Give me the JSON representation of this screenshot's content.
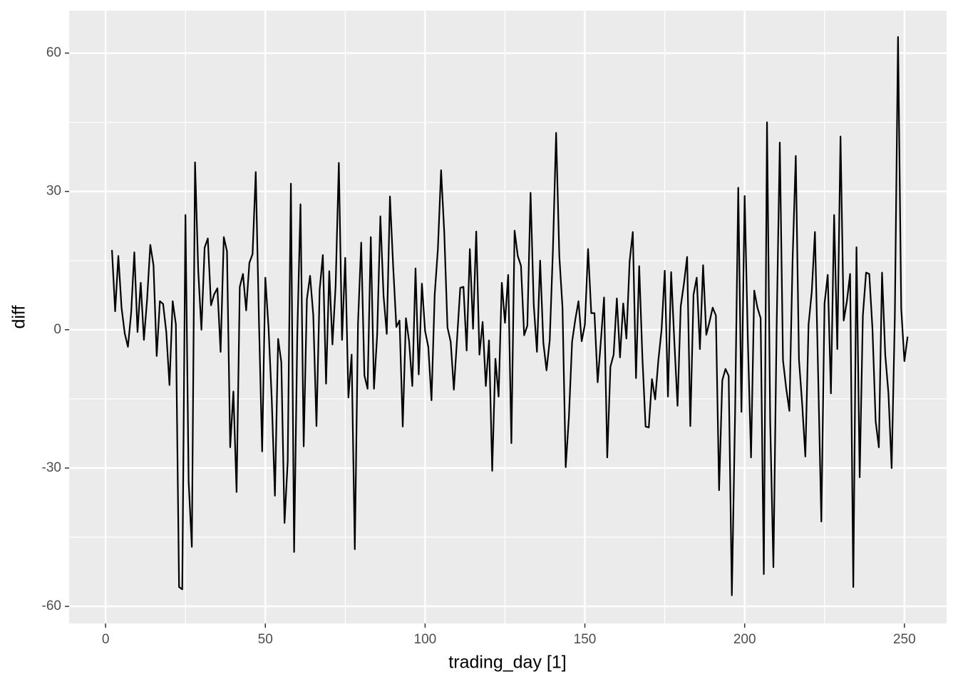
{
  "chart_data": {
    "type": "line",
    "x_label": "trading_day [1]",
    "y_label": "diff",
    "x": [
      2,
      3,
      4,
      5,
      6,
      7,
      8,
      9,
      10,
      11,
      12,
      13,
      14,
      15,
      16,
      17,
      18,
      19,
      20,
      21,
      22,
      23,
      24,
      25,
      26,
      27,
      28,
      29,
      30,
      31,
      32,
      33,
      34,
      35,
      36,
      37,
      38,
      39,
      40,
      41,
      42,
      43,
      44,
      45,
      46,
      47,
      48,
      49,
      50,
      51,
      52,
      53,
      54,
      55,
      56,
      57,
      58,
      59,
      60,
      61,
      62,
      63,
      64,
      65,
      66,
      67,
      68,
      69,
      70,
      71,
      72,
      73,
      74,
      75,
      76,
      77,
      78,
      79,
      80,
      81,
      82,
      83,
      84,
      85,
      86,
      87,
      88,
      89,
      90,
      91,
      92,
      93,
      94,
      95,
      96,
      97,
      98,
      99,
      100,
      101,
      102,
      103,
      104,
      105,
      106,
      107,
      108,
      109,
      110,
      111,
      112,
      113,
      114,
      115,
      116,
      117,
      118,
      119,
      120,
      121,
      122,
      123,
      124,
      125,
      126,
      127,
      128,
      129,
      130,
      131,
      132,
      133,
      134,
      135,
      136,
      137,
      138,
      139,
      140,
      141,
      142,
      143,
      144,
      145,
      146,
      147,
      148,
      149,
      150,
      151,
      152,
      153,
      154,
      155,
      156,
      157,
      158,
      159,
      160,
      161,
      162,
      163,
      164,
      165,
      166,
      167,
      168,
      169,
      170,
      171,
      172,
      173,
      174,
      175,
      176,
      177,
      178,
      179,
      180,
      181,
      182,
      183,
      184,
      185,
      186,
      187,
      188,
      189,
      190,
      191,
      192,
      193,
      194,
      195,
      196,
      197,
      198,
      199,
      200,
      201,
      202,
      203,
      204,
      205,
      206,
      207,
      208,
      209,
      210,
      211,
      212,
      213,
      214,
      215,
      216,
      217,
      218,
      219,
      220,
      221,
      222,
      223,
      224,
      225,
      226,
      227,
      228,
      229,
      230,
      231,
      232,
      233,
      234,
      235,
      236,
      237,
      238,
      239,
      240,
      241,
      242,
      243,
      244,
      245,
      246,
      247,
      248,
      249,
      250,
      251
    ],
    "series": [
      {
        "name": "diff",
        "color": "#000000",
        "values": [
          17.3,
          4,
          16,
          4.8,
          -0.8,
          -3.7,
          3.6,
          16.8,
          -0.5,
          10.2,
          -2.2,
          6.6,
          18.4,
          14,
          -5.7,
          6.2,
          5.6,
          -0.5,
          -12,
          6.2,
          1.2,
          -55.8,
          -56.3,
          24.9,
          -32.9,
          -47.1,
          36.3,
          12.8,
          0,
          17.8,
          19.8,
          5.3,
          7.7,
          9,
          -4.8,
          20.1,
          17,
          -25.5,
          -13.4,
          -35.2,
          9.3,
          12.1,
          4.2,
          14.5,
          16.4,
          34.2,
          2,
          -26.4,
          11.3,
          0.5,
          -15,
          -36,
          -2,
          -7,
          -41.9,
          -28.6,
          31.7,
          -48.2,
          -1.1,
          27.2,
          -25.3,
          6.6,
          11.7,
          3.2,
          -20.9,
          8.7,
          16.2,
          -11.7,
          12.7,
          -3.2,
          9.6,
          36.2,
          -2.2,
          15.6,
          -14.7,
          -5.4,
          -47.6,
          1.4,
          18.9,
          -9.9,
          -12.8,
          20.1,
          -12.8,
          -1.1,
          24.6,
          7.3,
          -0.9,
          28.9,
          13.8,
          0.6,
          2,
          -21,
          2.5,
          -2.6,
          -12.2,
          13.3,
          -9.7,
          10,
          -0.3,
          -3.7,
          -15.3,
          7.6,
          17.5,
          34.6,
          21,
          0.5,
          -2.6,
          -13,
          -2,
          9.1,
          9.3,
          -4.5,
          17.5,
          0.2,
          21.3,
          -5.4,
          1.7,
          -12.2,
          -2.3,
          -30.6,
          -6.3,
          -14.5,
          10.2,
          1.5,
          11.9,
          -24.6,
          21.5,
          16,
          13.9,
          -1.2,
          0.9,
          29.7,
          5.4,
          -4.8,
          15,
          -2.8,
          -8.8,
          -2.3,
          17.3,
          42.7,
          16,
          4.8,
          -29.8,
          -19,
          -2.6,
          2.2,
          6.2,
          -2.5,
          1.1,
          17.5,
          3.6,
          3.6,
          -11.4,
          -2.5,
          7,
          -27.7,
          -8,
          -5.4,
          6.8,
          -6,
          5.7,
          -1.9,
          14.8,
          21.2,
          -10.5,
          13.8,
          -6,
          -21,
          -21.2,
          -10.7,
          -15.1,
          -6.6,
          0,
          12.8,
          -14.5,
          12.5,
          -2.6,
          -16.5,
          5.1,
          10,
          15.8,
          -20.9,
          7.6,
          11.3,
          -4.2,
          14,
          -1.1,
          1.7,
          4.8,
          3.1,
          -34.8,
          -11,
          -8.5,
          -10,
          -57.6,
          -18.5,
          30.8,
          -17.8,
          29,
          -2.2,
          -27.7,
          8.5,
          4.8,
          2.5,
          -53,
          45,
          -20.1,
          -51.5,
          0,
          40.6,
          -6.6,
          -12.7,
          -17.6,
          15.1,
          37.7,
          -6.5,
          -16.1,
          -27.5,
          1.1,
          8.2,
          21.2,
          -9.7,
          -41.6,
          5.7,
          11.9,
          -13.8,
          24.9,
          -4.2,
          41.9,
          2,
          6.2,
          12.1,
          -55.8,
          17.9,
          -32,
          3.1,
          12.4,
          12.1,
          0.2,
          -19.9,
          -25.5,
          12.4,
          -5.4,
          -13.8,
          -30,
          2.8,
          63.5,
          4.6,
          -6.8,
          -1.5
        ]
      }
    ],
    "xlim": [
      -11.4,
      263.2
    ],
    "xticks": [
      0,
      50,
      100,
      150,
      200,
      250
    ],
    "xminorticks": [
      25,
      75,
      125,
      175,
      225
    ],
    "ylim": [
      -63.7,
      69.2
    ],
    "yticks": [
      -60,
      -30,
      0,
      30,
      60
    ],
    "yminorticks": [
      -45,
      -15,
      15,
      45
    ],
    "grid": true,
    "panel_color": "#ebebeb",
    "grid_color": "#ffffff"
  }
}
